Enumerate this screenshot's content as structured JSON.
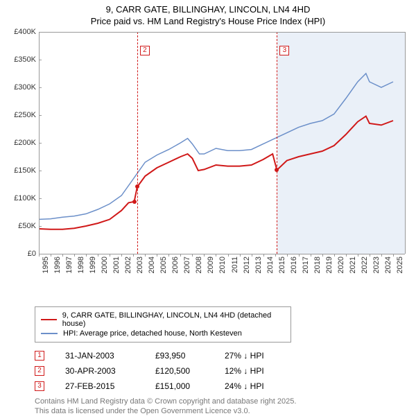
{
  "title_line1": "9, CARR GATE, BILLINGHAY, LINCOLN, LN4 4HD",
  "title_line2": "Price paid vs. HM Land Registry's House Price Index (HPI)",
  "chart": {
    "type": "line",
    "background_color": "#ffffff",
    "shaded_future_color": "#eaf0f8",
    "grid_color": "#999999",
    "ylim": [
      0,
      400000
    ],
    "ytick_step": 50000,
    "y_ticks": [
      0,
      50000,
      100000,
      150000,
      200000,
      250000,
      300000,
      350000,
      400000
    ],
    "y_tick_labels": [
      "£0",
      "£50K",
      "£100K",
      "£150K",
      "£200K",
      "£250K",
      "£300K",
      "£350K",
      "£400K"
    ],
    "xlim": [
      1995,
      2026
    ],
    "x_ticks": [
      1995,
      1996,
      1997,
      1998,
      1999,
      2000,
      2001,
      2002,
      2003,
      2004,
      2005,
      2006,
      2007,
      2008,
      2009,
      2010,
      2011,
      2012,
      2013,
      2014,
      2015,
      2016,
      2017,
      2018,
      2019,
      2020,
      2021,
      2022,
      2023,
      2024,
      2025
    ],
    "future_start": 2015.2,
    "series": [
      {
        "name": "property",
        "label": "9, CARR GATE, BILLINGHAY, LINCOLN, LN4 4HD (detached house)",
        "color": "#d01818",
        "line_width": 2,
        "points": [
          [
            1995,
            45000
          ],
          [
            1996,
            44000
          ],
          [
            1997,
            44000
          ],
          [
            1998,
            46000
          ],
          [
            1999,
            50000
          ],
          [
            2000,
            55000
          ],
          [
            2001,
            62000
          ],
          [
            2002,
            78000
          ],
          [
            2002.6,
            92000
          ],
          [
            2003.08,
            93950
          ],
          [
            2003.33,
            120500
          ],
          [
            2004,
            140000
          ],
          [
            2005,
            155000
          ],
          [
            2006,
            165000
          ],
          [
            2007,
            175000
          ],
          [
            2007.6,
            180000
          ],
          [
            2008,
            172000
          ],
          [
            2008.5,
            150000
          ],
          [
            2009,
            152000
          ],
          [
            2010,
            160000
          ],
          [
            2011,
            158000
          ],
          [
            2012,
            158000
          ],
          [
            2013,
            160000
          ],
          [
            2014,
            170000
          ],
          [
            2014.8,
            180000
          ],
          [
            2015.16,
            151000
          ],
          [
            2016,
            168000
          ],
          [
            2017,
            175000
          ],
          [
            2018,
            180000
          ],
          [
            2019,
            185000
          ],
          [
            2020,
            195000
          ],
          [
            2021,
            215000
          ],
          [
            2022,
            238000
          ],
          [
            2022.7,
            248000
          ],
          [
            2023,
            235000
          ],
          [
            2024,
            232000
          ],
          [
            2025,
            240000
          ]
        ]
      },
      {
        "name": "hpi",
        "label": "HPI: Average price, detached house, North Kesteven",
        "color": "#6b8fc9",
        "line_width": 1.5,
        "points": [
          [
            1995,
            62000
          ],
          [
            1996,
            63000
          ],
          [
            1997,
            66000
          ],
          [
            1998,
            68000
          ],
          [
            1999,
            72000
          ],
          [
            2000,
            80000
          ],
          [
            2001,
            90000
          ],
          [
            2002,
            105000
          ],
          [
            2003,
            135000
          ],
          [
            2004,
            165000
          ],
          [
            2005,
            178000
          ],
          [
            2006,
            188000
          ],
          [
            2007,
            200000
          ],
          [
            2007.6,
            208000
          ],
          [
            2008,
            198000
          ],
          [
            2008.6,
            180000
          ],
          [
            2009,
            180000
          ],
          [
            2010,
            190000
          ],
          [
            2011,
            186000
          ],
          [
            2012,
            186000
          ],
          [
            2013,
            188000
          ],
          [
            2014,
            198000
          ],
          [
            2015,
            208000
          ],
          [
            2016,
            218000
          ],
          [
            2017,
            228000
          ],
          [
            2018,
            235000
          ],
          [
            2019,
            240000
          ],
          [
            2020,
            252000
          ],
          [
            2021,
            280000
          ],
          [
            2022,
            310000
          ],
          [
            2022.7,
            325000
          ],
          [
            2023,
            310000
          ],
          [
            2024,
            300000
          ],
          [
            2025,
            310000
          ]
        ]
      }
    ],
    "sale_markers": [
      {
        "n": "1",
        "x": 2003.08,
        "y": 93950,
        "dot_only": true
      },
      {
        "n": "2",
        "x": 2003.33,
        "y": 120500
      },
      {
        "n": "3",
        "x": 2015.16,
        "y": 151000
      }
    ],
    "vline_color": "#d01818",
    "marker_border_color": "#d01818",
    "marker_text_color": "#d01818",
    "label_fontsize": 11
  },
  "legend": {
    "items": [
      {
        "color": "#d01818",
        "label": "9, CARR GATE, BILLINGHAY, LINCOLN, LN4 4HD (detached house)"
      },
      {
        "color": "#6b8fc9",
        "label": "HPI: Average price, detached house, North Kesteven"
      }
    ]
  },
  "transactions": [
    {
      "n": "1",
      "date": "31-JAN-2003",
      "price": "£93,950",
      "diff": "27% ↓ HPI"
    },
    {
      "n": "2",
      "date": "30-APR-2003",
      "price": "£120,500",
      "diff": "12% ↓ HPI"
    },
    {
      "n": "3",
      "date": "27-FEB-2015",
      "price": "£151,000",
      "diff": "24% ↓ HPI"
    }
  ],
  "footer_line1": "Contains HM Land Registry data © Crown copyright and database right 2025.",
  "footer_line2": "This data is licensed under the Open Government Licence v3.0."
}
